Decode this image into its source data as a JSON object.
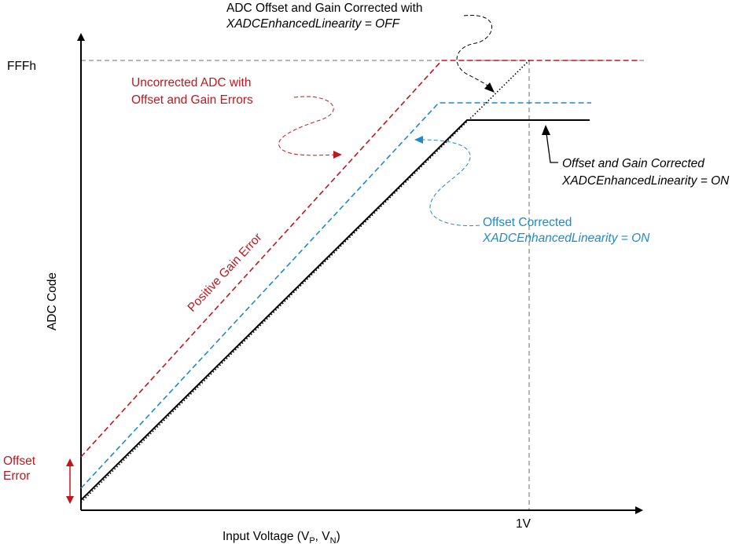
{
  "axes": {
    "y_title": "ADC Code",
    "x_title_main": "Input Voltage (V",
    "x_sub_p": "P",
    "x_sep": ", V",
    "x_sub_n": "N",
    "x_close": ")",
    "y_tick_label": "FFFh",
    "x_tick_label": "1V"
  },
  "offset_error": {
    "line1": "Offset",
    "line2": "Error"
  },
  "annotations": {
    "off": {
      "line1": "ADC Offset and Gain Corrected with",
      "line2": "XADCEnhancedLinearity = OFF"
    },
    "uncorrected": {
      "line1": "Uncorrected ADC with",
      "line2": "Offset and Gain Errors"
    },
    "gain_on": {
      "line1": "Offset and Gain Corrected",
      "line2": "XADCEnhancedLinearity = ON"
    },
    "offset_on": {
      "line1": "Offset Corrected",
      "line2": "XADCEnhancedLinearity = ON"
    },
    "positive_gain": "Positive Gain Error"
  },
  "colors": {
    "red": "#c0171e",
    "blue": "#1f8ac9",
    "black": "#000000",
    "gray": "#6f6f6f"
  }
}
